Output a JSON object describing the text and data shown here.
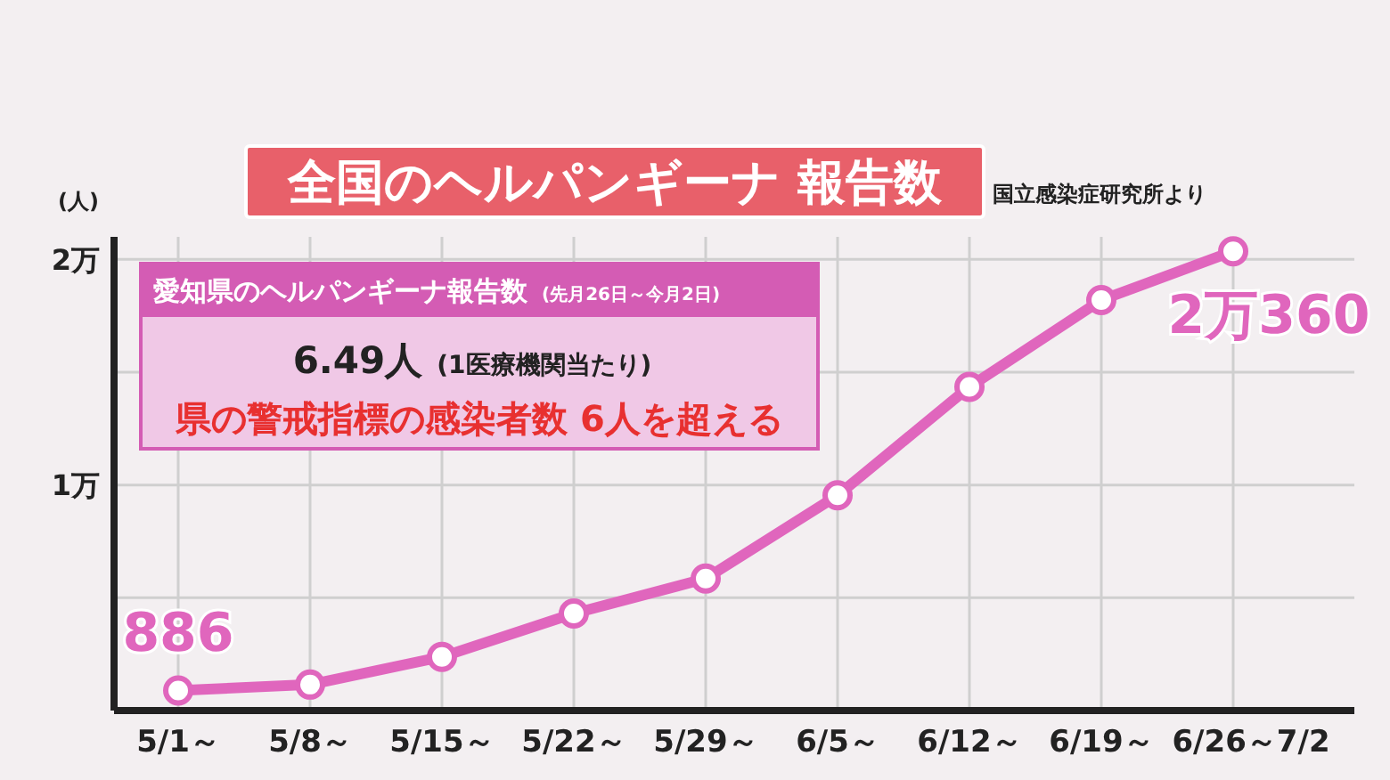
{
  "chart_data": {
    "type": "line",
    "title": "全国のヘルパンギーナ 報告数",
    "ylabel": "(人)",
    "annotations": [
      "国立感染症研究所より",
      "愛知県のヘルパンギーナ報告数",
      "(先月26日～今月2日)",
      "6.49人",
      "(1医療機関当たり)",
      "県の警戒指標の感染者数 6人を超える",
      {
        "text": "886",
        "x": "5/1～",
        "y": 0.089
      }
    ],
    "categories": [
      "5/1～",
      "5/8～",
      "5/15～",
      "5/22～",
      "5/29～",
      "6/5～",
      "6/12～",
      "6/19～",
      "6/26～7/2"
    ],
    "series": [
      {
        "color": "#e066bd",
        "values": [
          0.089,
          0.115,
          0.238,
          0.43,
          0.585,
          0.954,
          1.435,
          1.82,
          2.036
        ],
        "value_labels": [
          null,
          null,
          null,
          null,
          null,
          null,
          null,
          null,
          "2万360"
        ]
      }
    ],
    "ylim": [
      0,
      2.1
    ],
    "yticks": [
      {
        "value": 0.5,
        "label": null
      },
      {
        "value": 1,
        "label": "1万"
      },
      {
        "value": 1.5,
        "label": null
      },
      {
        "value": 2,
        "label": "2万"
      }
    ],
    "grid": true,
    "marker": "circle",
    "line_style": "solid"
  }
}
